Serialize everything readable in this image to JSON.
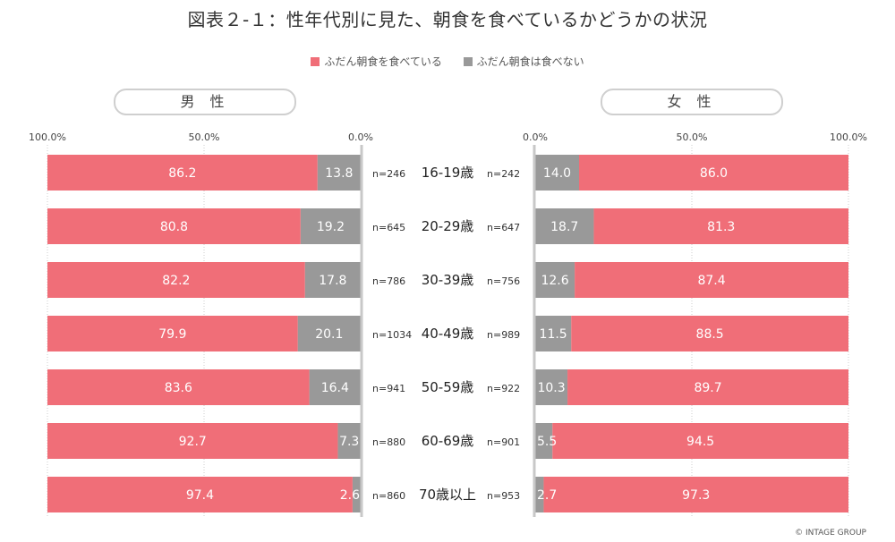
{
  "title": "図表２-１：性年代別に見た、朝食を食べているかどうかの状況",
  "legend": [
    {
      "label": "ふだん朝食を食べている",
      "color": "#f06e78"
    },
    {
      "label": "ふだん朝食は食べない",
      "color": "#999999"
    }
  ],
  "panels": {
    "male_label": "男 性",
    "female_label": "女 性"
  },
  "copyright": "© INTAGE GROUP",
  "chart_data": {
    "type": "bar",
    "orientation": "horizontal-stacked-butterfly",
    "title": "図表２-１：性年代別に見た、朝食を食べているかどうかの状況",
    "categories": [
      "16-19歳",
      "20-29歳",
      "30-39歳",
      "40-49歳",
      "50-59歳",
      "60-69歳",
      "70歳以上"
    ],
    "xlim": [
      0,
      100
    ],
    "ticks": {
      "male": [
        "100.0%",
        "50.0%",
        "0.0%"
      ],
      "female": [
        "0.0%",
        "50.0%",
        "100.0%"
      ]
    },
    "legend_position": "top-center",
    "colors": {
      "eat": "#f06e78",
      "not_eat": "#999999"
    },
    "male": {
      "label": "男 性",
      "n": [
        "n=246",
        "n=645",
        "n=786",
        "n=1034",
        "n=941",
        "n=880",
        "n=860"
      ],
      "series": [
        {
          "name": "ふだん朝食を食べている",
          "values": [
            86.2,
            80.8,
            82.2,
            79.9,
            83.6,
            92.7,
            97.4
          ]
        },
        {
          "name": "ふだん朝食は食べない",
          "values": [
            13.8,
            19.2,
            17.8,
            20.1,
            16.4,
            7.3,
            2.6
          ]
        }
      ]
    },
    "female": {
      "label": "女 性",
      "n": [
        "n=242",
        "n=647",
        "n=756",
        "n=989",
        "n=922",
        "n=901",
        "n=953"
      ],
      "series": [
        {
          "name": "ふだん朝食を食べている",
          "values": [
            86.0,
            81.3,
            87.4,
            88.5,
            89.7,
            94.5,
            97.3
          ]
        },
        {
          "name": "ふだん朝食は食べない",
          "values": [
            14.0,
            18.7,
            12.6,
            11.5,
            10.3,
            5.5,
            2.7
          ]
        }
      ]
    }
  }
}
